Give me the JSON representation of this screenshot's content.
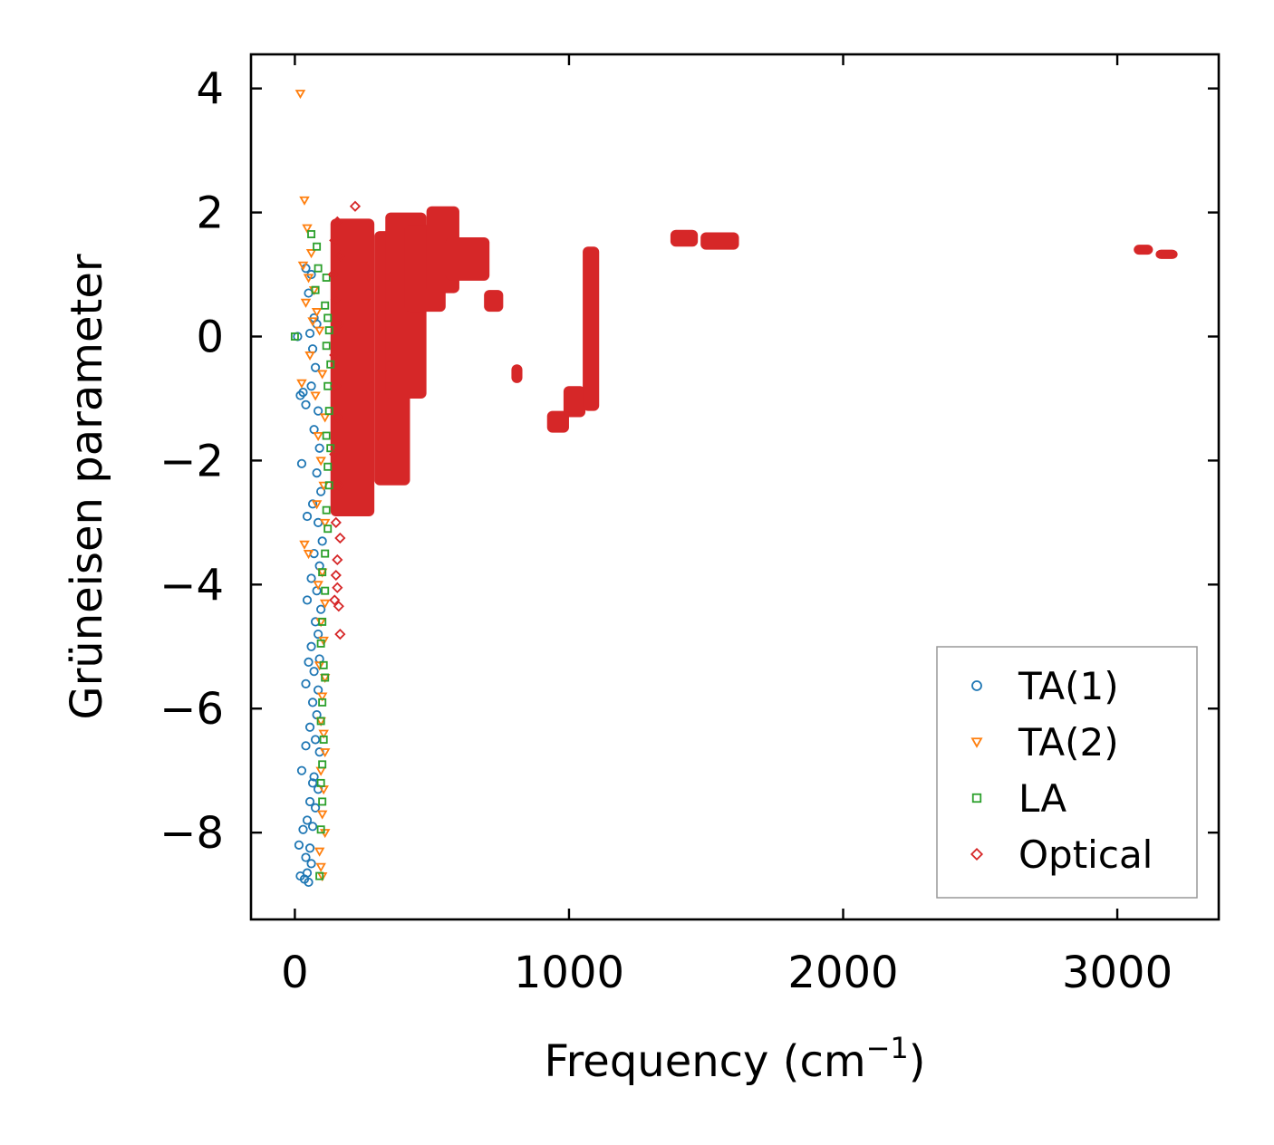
{
  "chart_data": {
    "type": "scatter",
    "title": "",
    "xlabel": "Frequency (cm",
    "xlabel_sup": "−1",
    "xlabel_end": ")",
    "ylabel": "Grüneisen parameter",
    "xlim": [
      -160,
      3370
    ],
    "ylim": [
      -9.4,
      4.55
    ],
    "xticks": [
      0,
      1000,
      2000,
      3000
    ],
    "xtick_labels": [
      "0",
      "1000",
      "2000",
      "3000"
    ],
    "yticks": [
      4,
      2,
      0,
      -2,
      -4,
      -6,
      -8
    ],
    "ytick_labels": [
      "4",
      "2",
      "0",
      "−2",
      "−4",
      "−6",
      "−8"
    ],
    "legend_position": "lower-right",
    "series": [
      {
        "name": "TA(1)",
        "marker": "circle",
        "color": "#1f77b4",
        "points": [
          [
            10,
            0
          ],
          [
            30,
            -0.9
          ],
          [
            20,
            -0.95
          ],
          [
            40,
            -1.1
          ],
          [
            25,
            -2.05
          ],
          [
            45,
            -2.9
          ],
          [
            40,
            1.1
          ],
          [
            60,
            1.0
          ],
          [
            50,
            0.7
          ],
          [
            70,
            0.3
          ],
          [
            80,
            0.2
          ],
          [
            55,
            0.05
          ],
          [
            65,
            -0.2
          ],
          [
            75,
            -0.5
          ],
          [
            60,
            -0.8
          ],
          [
            85,
            -1.2
          ],
          [
            70,
            -1.5
          ],
          [
            90,
            -1.8
          ],
          [
            80,
            -2.2
          ],
          [
            95,
            -2.5
          ],
          [
            65,
            -2.7
          ],
          [
            85,
            -3.0
          ],
          [
            100,
            -3.3
          ],
          [
            70,
            -3.5
          ],
          [
            90,
            -3.7
          ],
          [
            60,
            -3.9
          ],
          [
            80,
            -4.1
          ],
          [
            45,
            -4.25
          ],
          [
            95,
            -4.4
          ],
          [
            75,
            -4.6
          ],
          [
            85,
            -4.8
          ],
          [
            60,
            -5.0
          ],
          [
            90,
            -5.2
          ],
          [
            50,
            -5.25
          ],
          [
            70,
            -5.4
          ],
          [
            40,
            -5.6
          ],
          [
            85,
            -5.7
          ],
          [
            65,
            -5.9
          ],
          [
            80,
            -6.1
          ],
          [
            55,
            -6.3
          ],
          [
            75,
            -6.5
          ],
          [
            40,
            -6.6
          ],
          [
            90,
            -6.7
          ],
          [
            25,
            -7.0
          ],
          [
            70,
            -7.1
          ],
          [
            85,
            -7.3
          ],
          [
            55,
            -7.5
          ],
          [
            75,
            -7.6
          ],
          [
            45,
            -7.8
          ],
          [
            65,
            -7.9
          ],
          [
            30,
            -7.95
          ],
          [
            15,
            -8.2
          ],
          [
            55,
            -8.25
          ],
          [
            40,
            -8.4
          ],
          [
            60,
            -8.5
          ],
          [
            20,
            -8.7
          ],
          [
            35,
            -8.75
          ],
          [
            50,
            -8.8
          ],
          [
            45,
            -8.65
          ],
          [
            65,
            -7.2
          ]
        ]
      },
      {
        "name": "TA(2)",
        "marker": "triangle-down",
        "color": "#ff7f0e",
        "points": [
          [
            20,
            3.92
          ],
          [
            35,
            2.2
          ],
          [
            45,
            1.75
          ],
          [
            60,
            1.35
          ],
          [
            30,
            1.15
          ],
          [
            50,
            0.95
          ],
          [
            70,
            0.75
          ],
          [
            40,
            0.55
          ],
          [
            80,
            0.4
          ],
          [
            65,
            0.25
          ],
          [
            90,
            0.1
          ],
          [
            55,
            -0.3
          ],
          [
            100,
            -0.6
          ],
          [
            25,
            -0.75
          ],
          [
            75,
            -0.95
          ],
          [
            110,
            -1.3
          ],
          [
            85,
            -1.6
          ],
          [
            95,
            -2.0
          ],
          [
            105,
            -2.4
          ],
          [
            80,
            -2.7
          ],
          [
            110,
            -3.0
          ],
          [
            35,
            -3.35
          ],
          [
            50,
            -3.5
          ],
          [
            100,
            -3.8
          ],
          [
            85,
            -4.0
          ],
          [
            110,
            -4.3
          ],
          [
            95,
            -4.6
          ],
          [
            105,
            -4.9
          ],
          [
            90,
            -5.3
          ],
          [
            110,
            -5.5
          ],
          [
            100,
            -5.8
          ],
          [
            95,
            -6.2
          ],
          [
            105,
            -6.4
          ],
          [
            110,
            -6.7
          ],
          [
            95,
            -7.0
          ],
          [
            105,
            -7.3
          ],
          [
            100,
            -7.7
          ],
          [
            110,
            -8.0
          ],
          [
            90,
            -8.3
          ],
          [
            95,
            -8.55
          ],
          [
            100,
            -8.7
          ]
        ]
      },
      {
        "name": "LA",
        "marker": "square",
        "color": "#2ca02c",
        "points": [
          [
            0,
            0
          ],
          [
            60,
            1.65
          ],
          [
            80,
            1.45
          ],
          [
            85,
            1.1
          ],
          [
            115,
            0.95
          ],
          [
            75,
            0.75
          ],
          [
            110,
            0.5
          ],
          [
            120,
            0.3
          ],
          [
            125,
            0.1
          ],
          [
            115,
            -0.15
          ],
          [
            130,
            -0.45
          ],
          [
            120,
            -0.8
          ],
          [
            125,
            -1.2
          ],
          [
            115,
            -1.6
          ],
          [
            130,
            -1.8
          ],
          [
            120,
            -2.1
          ],
          [
            125,
            -2.4
          ],
          [
            115,
            -2.8
          ],
          [
            120,
            -3.1
          ],
          [
            110,
            -3.5
          ],
          [
            100,
            -3.8
          ],
          [
            110,
            -4.1
          ],
          [
            100,
            -4.6
          ],
          [
            95,
            -4.95
          ],
          [
            105,
            -5.3
          ],
          [
            110,
            -5.5
          ],
          [
            100,
            -5.9
          ],
          [
            95,
            -6.2
          ],
          [
            105,
            -6.5
          ],
          [
            100,
            -6.9
          ],
          [
            95,
            -7.2
          ],
          [
            100,
            -7.5
          ],
          [
            95,
            -7.95
          ],
          [
            90,
            -8.7
          ]
        ]
      },
      {
        "name": "Optical",
        "marker": "diamond",
        "color": "#d62728",
        "points": [
          [
            220,
            2.1
          ],
          [
            155,
            1.85
          ],
          [
            145,
            1.55
          ],
          [
            165,
            1.3
          ],
          [
            140,
            1.0
          ],
          [
            150,
            0.6
          ],
          [
            160,
            0.2
          ],
          [
            145,
            -0.3
          ],
          [
            150,
            -0.8
          ],
          [
            155,
            -1.3
          ],
          [
            145,
            -1.9
          ],
          [
            160,
            -2.4
          ],
          [
            150,
            -3.0
          ],
          [
            165,
            -3.25
          ],
          [
            155,
            -3.6
          ],
          [
            150,
            -3.85
          ],
          [
            155,
            -4.05
          ],
          [
            145,
            -4.25
          ],
          [
            160,
            -4.35
          ],
          [
            165,
            -4.8
          ]
        ],
        "regions": [
          {
            "x_range": [
              130,
              290
            ],
            "y_range": [
              -2.9,
              1.9
            ]
          },
          {
            "x_range": [
              290,
              420
            ],
            "y_range": [
              -2.4,
              1.7
            ]
          },
          {
            "x_range": [
              330,
              480
            ],
            "y_range": [
              -1.0,
              2.0
            ]
          },
          {
            "x_range": [
              400,
              550
            ],
            "y_range": [
              0.4,
              1.8
            ]
          },
          {
            "x_range": [
              480,
              600
            ],
            "y_range": [
              0.7,
              2.1
            ]
          },
          {
            "x_range": [
              550,
              710
            ],
            "y_range": [
              0.9,
              1.6
            ]
          },
          {
            "x_range": [
              690,
              760
            ],
            "y_range": [
              0.4,
              0.75
            ]
          },
          {
            "x_range": [
              790,
              830
            ],
            "y_range": [
              -0.75,
              -0.45
            ]
          },
          {
            "x_range": [
              920,
              1000
            ],
            "y_range": [
              -1.55,
              -1.2
            ]
          },
          {
            "x_range": [
              980,
              1060
            ],
            "y_range": [
              -1.3,
              -0.8
            ]
          },
          {
            "x_range": [
              1050,
              1110
            ],
            "y_range": [
              -1.2,
              1.45
            ]
          },
          {
            "x_range": [
              1370,
              1470
            ],
            "y_range": [
              1.45,
              1.72
            ]
          },
          {
            "x_range": [
              1480,
              1620
            ],
            "y_range": [
              1.4,
              1.68
            ]
          },
          {
            "x_range": [
              3060,
              3130
            ],
            "y_range": [
              1.32,
              1.48
            ]
          },
          {
            "x_range": [
              3140,
              3220
            ],
            "y_range": [
              1.25,
              1.4
            ]
          }
        ]
      }
    ]
  }
}
